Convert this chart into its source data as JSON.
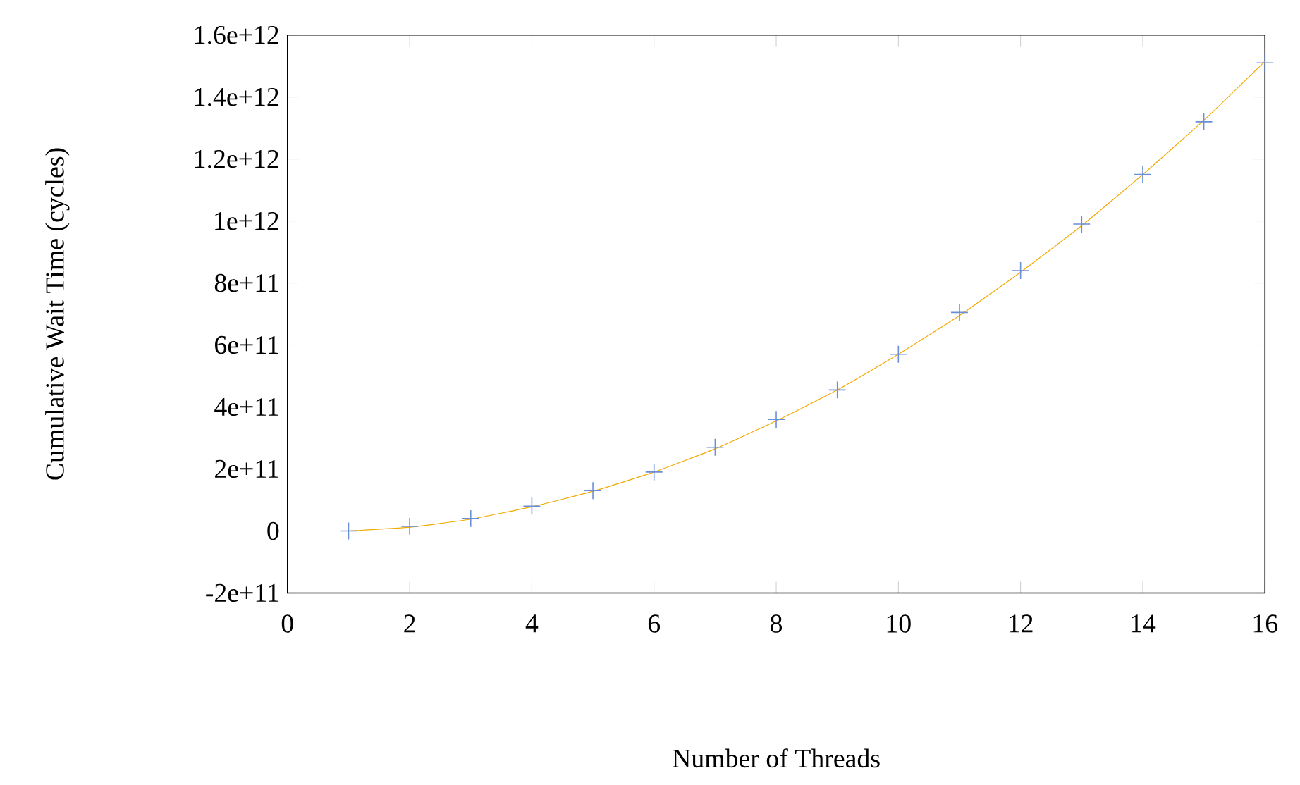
{
  "chart_data": {
    "type": "scatter",
    "xlabel": "Number of Threads",
    "ylabel": "Cumulative Wait Time (cycles)",
    "xlim": [
      0,
      16
    ],
    "xticks": [
      0,
      2,
      4,
      6,
      8,
      10,
      12,
      14,
      16
    ],
    "ylim": [
      -200000000000,
      1600000000000
    ],
    "yticks": [
      {
        "value": -200000000000,
        "label": "-2e+11"
      },
      0,
      {
        "value": 200000000000,
        "label": "2e+11"
      },
      {
        "value": 400000000000,
        "label": "4e+11"
      },
      {
        "value": 600000000000,
        "label": "6e+11"
      },
      {
        "value": 800000000000,
        "label": "8e+11"
      },
      {
        "value": 1000000000000,
        "label": "1e+12"
      },
      {
        "value": 1200000000000,
        "label": "1.2e+12"
      },
      {
        "value": 1400000000000,
        "label": "1.4e+12"
      },
      {
        "value": 1600000000000,
        "label": "1.6e+12"
      }
    ],
    "grid": false,
    "series": [
      {
        "marker": "cross",
        "color": "#6a8fd8",
        "x": [
          1,
          2,
          3,
          4,
          5,
          6,
          7,
          8,
          9,
          10,
          11,
          12,
          13,
          14,
          15,
          16
        ],
        "values": [
          0,
          15000000000,
          40000000000,
          80000000000,
          130000000000,
          190000000000,
          270000000000,
          360000000000,
          455000000000,
          570000000000,
          705000000000,
          840000000000,
          990000000000,
          1150000000000,
          1320000000000,
          1510000000000
        ]
      },
      {
        "type": "line",
        "marker": "none",
        "color": "#f2a900",
        "x": [
          1,
          2,
          3,
          4,
          5,
          6,
          7,
          8,
          9,
          10,
          11,
          12,
          13,
          14,
          15,
          16
        ],
        "values": [
          0,
          12000000000,
          38000000000,
          78000000000,
          128000000000,
          190000000000,
          265000000000,
          355000000000,
          455000000000,
          570000000000,
          695000000000,
          835000000000,
          985000000000,
          1150000000000,
          1325000000000,
          1515000000000
        ]
      }
    ]
  }
}
